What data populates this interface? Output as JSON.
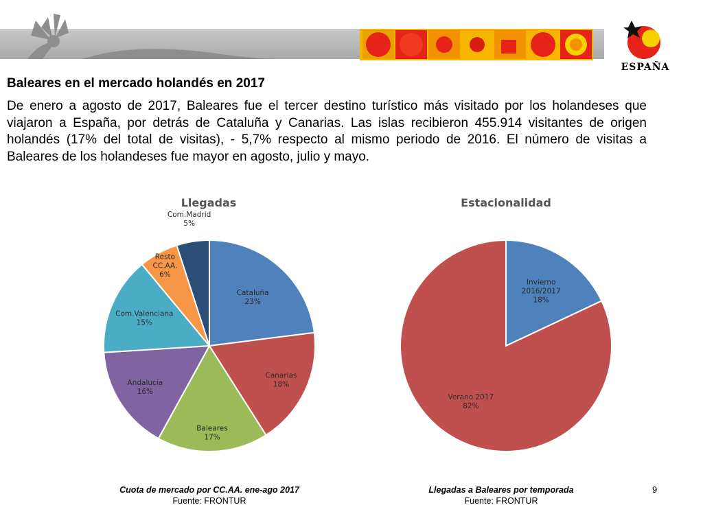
{
  "heading": "Baleares en el mercado holandés en 2017",
  "paragraph": "De enero a agosto de 2017, Baleares fue el tercer destino turístico más visitado por los holandeses que viajaron a España, por detrás de Cataluña y Canarias. Las islas recibieron 455.914 visitantes de origen holandés (17% del total de visitas), - 5,7% respecto al mismo periodo de 2016. El número de visitas a Baleares de los holandeses fue mayor en agosto, julio y mayo.",
  "logo": {
    "text": "ESPAÑA"
  },
  "chart_data": [
    {
      "type": "pie",
      "title": "Llegadas",
      "slices": [
        {
          "name": "Cataluña",
          "lines": [
            "Cataluña"
          ],
          "value": 23,
          "label": "23%",
          "color": "#4F81BD"
        },
        {
          "name": "Canarias",
          "lines": [
            "Canarias"
          ],
          "value": 18,
          "label": "18%",
          "color": "#C0504D"
        },
        {
          "name": "Baleares",
          "lines": [
            "Baleares"
          ],
          "value": 17,
          "label": "17%",
          "color": "#9BBB59"
        },
        {
          "name": "Andalucía",
          "lines": [
            "Andalucía"
          ],
          "value": 16,
          "label": "16%",
          "color": "#8064A2"
        },
        {
          "name": "Com.Valenciana",
          "lines": [
            "Com.Valenciana"
          ],
          "value": 15,
          "label": "15%",
          "color": "#4BACC6"
        },
        {
          "name": "Resto CC.AA.",
          "lines": [
            "Resto",
            "CC.AA."
          ],
          "value": 6,
          "label": "6%",
          "color": "#F79646"
        },
        {
          "name": "Com.Madrid",
          "lines": [
            "Com.Madrid"
          ],
          "value": 5,
          "label": "5%",
          "color": "#2C4D75"
        }
      ]
    },
    {
      "type": "pie",
      "title": "Estacionalidad",
      "slices": [
        {
          "name": "Invierno 2016/2017",
          "lines": [
            "Invierno",
            "2016/2017"
          ],
          "value": 18,
          "label": "18%",
          "color": "#4F81BD"
        },
        {
          "name": "Verano 2017",
          "lines": [
            "Verano 2017"
          ],
          "value": 82,
          "label": "82%",
          "color": "#C0504D"
        }
      ]
    }
  ],
  "captions": {
    "left": {
      "title": "Cuota de mercado por CC.AA. ene-ago 2017",
      "source": "Fuente: FRONTUR"
    },
    "right": {
      "title": "Llegadas a Baleares por temporada",
      "source": "Fuente: FRONTUR"
    }
  },
  "page_number": "9"
}
